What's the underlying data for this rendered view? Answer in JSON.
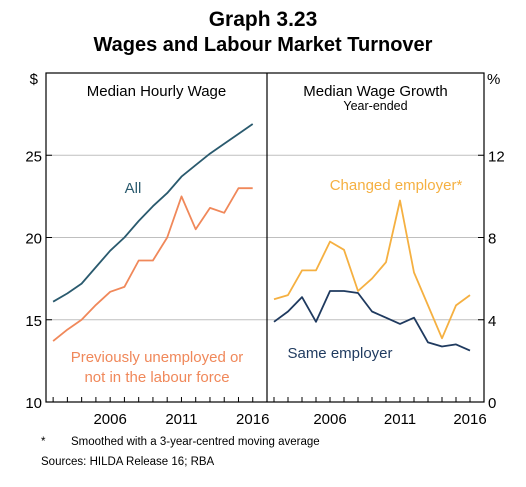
{
  "graph_number": "Graph 3.23",
  "title": "Wages and Labour Market Turnover",
  "footnote_marker": "*",
  "footnote": "Smoothed with a 3-year-centred moving average",
  "sources": "Sources: HILDA Release 16; RBA",
  "colors": {
    "all": "#2a5a6e",
    "previously_unemployed": "#f0885a",
    "changed_employer": "#f5b041",
    "same_employer": "#1f3a5f",
    "grid": "#bfbfbf",
    "frame": "#000000"
  },
  "chart_data": [
    {
      "type": "line",
      "title": "Median Hourly Wage",
      "ylabel": "$",
      "ylim": [
        10,
        30
      ],
      "yticks": [
        10,
        15,
        20,
        25
      ],
      "xlim": [
        2001.5,
        2017.0
      ],
      "xticks": [
        2006,
        2011,
        2016
      ],
      "grid": true,
      "series": [
        {
          "name": "All",
          "color": "#2a5a6e",
          "x": [
            2002,
            2003,
            2004,
            2005,
            2006,
            2007,
            2008,
            2009,
            2010,
            2011,
            2012,
            2013,
            2014,
            2015,
            2016
          ],
          "values": [
            16.1,
            16.6,
            17.2,
            18.2,
            19.2,
            20.0,
            21.0,
            21.9,
            22.7,
            23.7,
            24.4,
            25.1,
            25.7,
            26.3,
            26.9
          ]
        },
        {
          "name": "Previously unemployed or not in the labour force",
          "color": "#f0885a",
          "x": [
            2002,
            2003,
            2004,
            2005,
            2006,
            2007,
            2008,
            2009,
            2010,
            2011,
            2012,
            2013,
            2014,
            2015,
            2016
          ],
          "values": [
            13.7,
            14.4,
            15.0,
            15.9,
            16.7,
            17.0,
            18.6,
            18.6,
            20.0,
            22.5,
            20.5,
            21.8,
            21.5,
            23.0,
            23.0
          ]
        }
      ]
    },
    {
      "type": "line",
      "title": "Median Wage Growth",
      "subtitle": "Year-ended",
      "ylabel": "%",
      "ylim": [
        0,
        16
      ],
      "yticks": [
        0,
        4,
        8,
        12
      ],
      "xlim": [
        2001.5,
        2017.0
      ],
      "xticks": [
        2006,
        2011,
        2016
      ],
      "grid": true,
      "series": [
        {
          "name": "Changed employer*",
          "color": "#f5b041",
          "x": [
            2002,
            2003,
            2004,
            2005,
            2006,
            2007,
            2008,
            2009,
            2010,
            2011,
            2012,
            2013,
            2014,
            2015,
            2016
          ],
          "values": [
            5.0,
            5.2,
            6.4,
            6.4,
            7.8,
            7.4,
            5.4,
            6.0,
            6.8,
            9.8,
            6.3,
            4.7,
            3.1,
            4.7,
            5.2
          ]
        },
        {
          "name": "Same employer",
          "color": "#1f3a5f",
          "x": [
            2002,
            2003,
            2004,
            2005,
            2006,
            2007,
            2008,
            2009,
            2010,
            2011,
            2012,
            2013,
            2014,
            2015,
            2016
          ],
          "values": [
            3.9,
            4.4,
            5.1,
            3.9,
            5.4,
            5.4,
            5.3,
            4.4,
            4.1,
            3.8,
            4.1,
            2.9,
            2.7,
            2.8,
            2.5
          ]
        }
      ]
    }
  ]
}
